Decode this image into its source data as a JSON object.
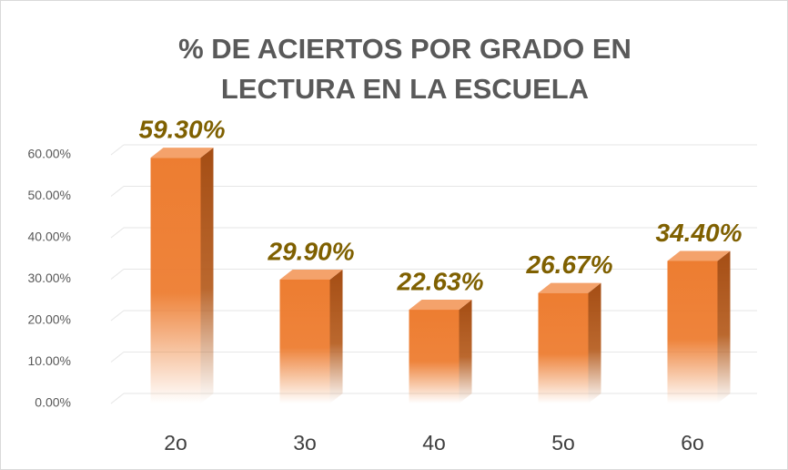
{
  "chart_data": {
    "type": "bar",
    "title": [
      "% DE ACIERTOS POR GRADO  EN",
      "LECTURA EN LA ESCUELA"
    ],
    "categories": [
      "2o",
      "3o",
      "4o",
      "5o",
      "6o"
    ],
    "values": [
      59.3,
      29.9,
      22.63,
      26.67,
      34.4
    ],
    "value_labels": [
      "59.30%",
      "29.90%",
      "22.63%",
      "26.67%",
      "34.40%"
    ],
    "color": "#ed7d31",
    "ylim": [
      0,
      60
    ],
    "yticks": [
      {
        "value": 0,
        "label": "0.00%"
      },
      {
        "value": 10,
        "label": "10.00%"
      },
      {
        "value": 20,
        "label": "20.00%"
      },
      {
        "value": 30,
        "label": "30.00%"
      },
      {
        "value": 40,
        "label": "40.00%"
      },
      {
        "value": 50,
        "label": "50.00%"
      },
      {
        "value": 60,
        "label": "60.00%"
      }
    ],
    "grid": true
  }
}
